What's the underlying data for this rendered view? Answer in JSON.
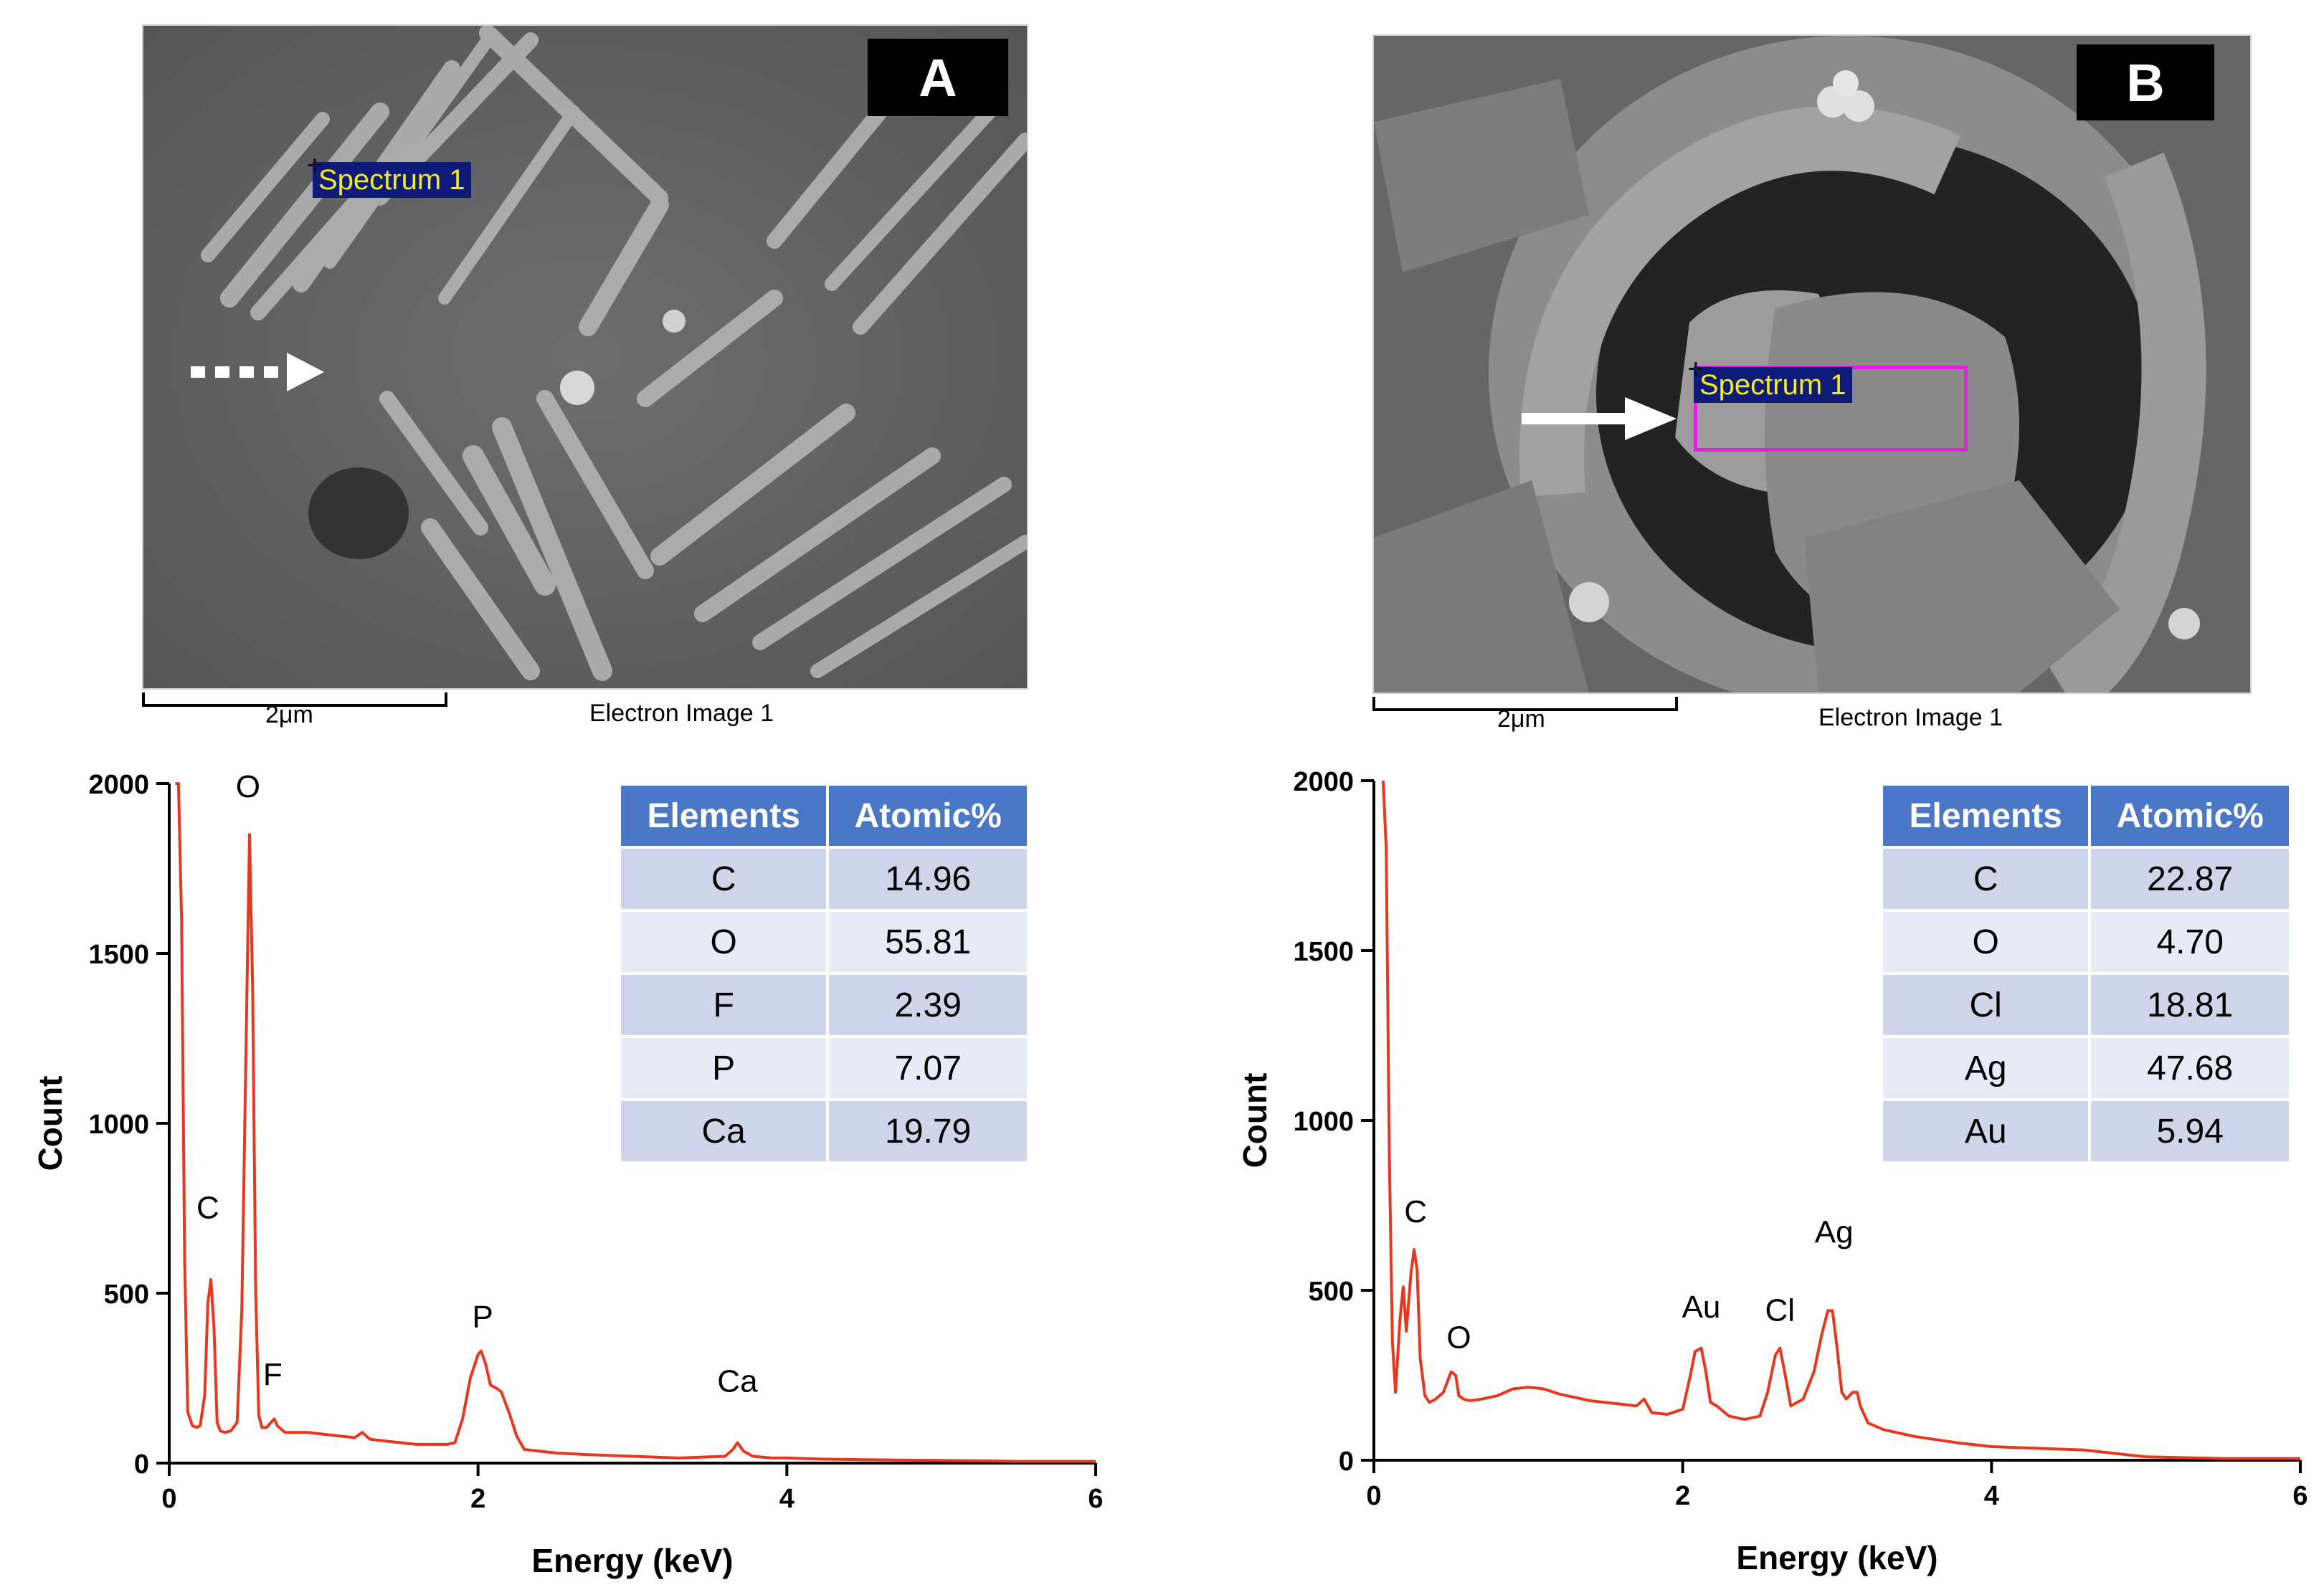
{
  "panels": [
    {
      "label": "A",
      "sem": {
        "spectrum_tag": "Spectrum 1",
        "scale_label": "2μm",
        "caption": "Electron Image 1"
      },
      "table": {
        "headers": [
          "Elements",
          "Atomic%"
        ],
        "rows": [
          [
            "C",
            "14.96"
          ],
          [
            "O",
            "55.81"
          ],
          [
            "F",
            "2.39"
          ],
          [
            "P",
            "7.07"
          ],
          [
            "Ca",
            "19.79"
          ]
        ]
      }
    },
    {
      "label": "B",
      "sem": {
        "spectrum_tag": "Spectrum 1",
        "scale_label": "2μm",
        "caption": "Electron Image 1"
      },
      "table": {
        "headers": [
          "Elements",
          "Atomic%"
        ],
        "rows": [
          [
            "C",
            "22.87"
          ],
          [
            "O",
            "4.70"
          ],
          [
            "Cl",
            "18.81"
          ],
          [
            "Ag",
            "47.68"
          ],
          [
            "Au",
            "5.94"
          ]
        ]
      }
    }
  ],
  "chart_data": [
    {
      "type": "line",
      "title": "",
      "xlabel": "Energy (keV)",
      "ylabel": "Count",
      "xlim": [
        0,
        6
      ],
      "ylim": [
        0,
        2000
      ],
      "xticks": [
        0,
        2,
        4,
        6
      ],
      "yticks": [
        0,
        500,
        1000,
        1500,
        2000
      ],
      "grid": false,
      "color": "#e8371f",
      "series": [
        {
          "x": [
            0.04,
            0.06,
            0.08,
            0.1,
            0.12,
            0.15,
            0.18,
            0.2,
            0.23,
            0.25,
            0.27,
            0.29,
            0.31,
            0.33,
            0.36,
            0.4,
            0.44,
            0.47,
            0.5,
            0.52,
            0.54,
            0.56,
            0.58,
            0.6,
            0.63,
            0.66,
            0.68,
            0.7,
            0.75,
            0.8,
            0.9,
            1.0,
            1.1,
            1.2,
            1.25,
            1.3,
            1.4,
            1.5,
            1.6,
            1.7,
            1.8,
            1.85,
            1.9,
            1.95,
            2.0,
            2.02,
            2.05,
            2.08,
            2.12,
            2.15,
            2.2,
            2.25,
            2.3,
            2.4,
            2.5,
            2.7,
            3.0,
            3.3,
            3.6,
            3.65,
            3.68,
            3.72,
            3.78,
            3.9,
            4.0,
            4.2,
            4.5,
            5.0,
            5.5,
            6.0
          ],
          "y": [
            2000,
            2000,
            1600,
            600,
            150,
            110,
            105,
            110,
            200,
            470,
            540,
            400,
            120,
            95,
            90,
            95,
            120,
            450,
            1300,
            1850,
            1400,
            500,
            140,
            105,
            105,
            120,
            130,
            110,
            90,
            90,
            90,
            85,
            80,
            75,
            90,
            70,
            65,
            60,
            55,
            55,
            55,
            60,
            130,
            250,
            320,
            330,
            290,
            230,
            220,
            210,
            150,
            80,
            40,
            35,
            30,
            25,
            20,
            15,
            20,
            40,
            60,
            35,
            20,
            15,
            15,
            12,
            10,
            8,
            5,
            5
          ]
        }
      ],
      "annotations": [
        {
          "text": "O",
          "x": 0.51,
          "y": 1960
        },
        {
          "text": "C",
          "x": 0.25,
          "y": 720
        },
        {
          "text": "F",
          "x": 0.67,
          "y": 230
        },
        {
          "text": "P",
          "x": 2.03,
          "y": 400
        },
        {
          "text": "Ca",
          "x": 3.68,
          "y": 210
        }
      ]
    },
    {
      "type": "line",
      "title": "",
      "xlabel": "Energy (keV)",
      "ylabel": "Count",
      "xlim": [
        0,
        6
      ],
      "ylim": [
        0,
        2000
      ],
      "xticks": [
        0,
        2,
        4,
        6
      ],
      "yticks": [
        0,
        500,
        1000,
        1500,
        2000
      ],
      "grid": false,
      "color": "#e8371f",
      "series": [
        {
          "x": [
            0.06,
            0.08,
            0.1,
            0.12,
            0.14,
            0.17,
            0.19,
            0.21,
            0.24,
            0.26,
            0.28,
            0.3,
            0.33,
            0.36,
            0.4,
            0.45,
            0.5,
            0.53,
            0.55,
            0.58,
            0.62,
            0.7,
            0.8,
            0.9,
            1.0,
            1.1,
            1.2,
            1.3,
            1.4,
            1.5,
            1.6,
            1.7,
            1.75,
            1.8,
            1.9,
            2.0,
            2.05,
            2.08,
            2.12,
            2.15,
            2.18,
            2.22,
            2.3,
            2.4,
            2.5,
            2.55,
            2.6,
            2.63,
            2.66,
            2.7,
            2.78,
            2.85,
            2.9,
            2.94,
            2.97,
            3.0,
            3.03,
            3.06,
            3.1,
            3.13,
            3.15,
            3.2,
            3.3,
            3.5,
            3.8,
            4.0,
            4.3,
            4.6,
            4.8,
            5.0,
            5.5,
            6.0
          ],
          "y": [
            2000,
            1800,
            900,
            350,
            200,
            420,
            510,
            380,
            550,
            620,
            560,
            300,
            190,
            170,
            180,
            200,
            260,
            250,
            190,
            180,
            175,
            180,
            190,
            210,
            215,
            210,
            195,
            185,
            175,
            170,
            165,
            160,
            180,
            140,
            135,
            150,
            250,
            320,
            330,
            260,
            170,
            160,
            130,
            120,
            130,
            200,
            310,
            330,
            260,
            160,
            180,
            260,
            370,
            440,
            440,
            330,
            200,
            180,
            200,
            200,
            160,
            110,
            90,
            70,
            50,
            40,
            35,
            30,
            20,
            10,
            5,
            5
          ]
        }
      ],
      "annotations": [
        {
          "text": "C",
          "x": 0.27,
          "y": 700
        },
        {
          "text": "O",
          "x": 0.55,
          "y": 330
        },
        {
          "text": "Au",
          "x": 2.12,
          "y": 420
        },
        {
          "text": "Cl",
          "x": 2.63,
          "y": 410
        },
        {
          "text": "Ag",
          "x": 2.98,
          "y": 640
        }
      ]
    }
  ]
}
